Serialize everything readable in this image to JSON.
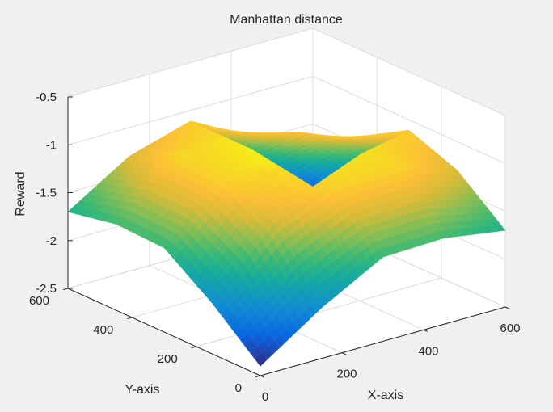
{
  "chart_data": {
    "type": "surface",
    "title": "Manhattan distance",
    "xlabel": "X-axis",
    "ylabel": "Y-axis",
    "zlabel": "Reward",
    "xlim": [
      0,
      600
    ],
    "ylim": [
      0,
      600
    ],
    "zlim": [
      -2.5,
      -0.5
    ],
    "xticks": [
      0,
      200,
      400,
      600
    ],
    "yticks": [
      0,
      200,
      400,
      600
    ],
    "zticks": [
      -2.5,
      -2,
      -1.5,
      -1,
      -0.5
    ],
    "zticklabels": [
      "-2.5",
      "-2",
      "-1.5",
      "-1",
      "-0.5"
    ],
    "grid": true,
    "colormap": "parula",
    "x": [
      0,
      150,
      300,
      450,
      600
    ],
    "y": [
      0,
      150,
      300,
      450,
      600
    ],
    "z": [
      [
        -2.4,
        -1.97,
        -1.62,
        -1.6,
        -1.7
      ],
      [
        -1.97,
        -1.32,
        -1.06,
        -1.06,
        -1.3
      ],
      [
        -1.62,
        -1.06,
        -0.97,
        -1.01,
        -1.11
      ],
      [
        -1.6,
        -1.06,
        -1.01,
        -1.18,
        -1.58
      ],
      [
        -1.7,
        -1.3,
        -1.11,
        -1.58,
        -2.15
      ]
    ]
  }
}
